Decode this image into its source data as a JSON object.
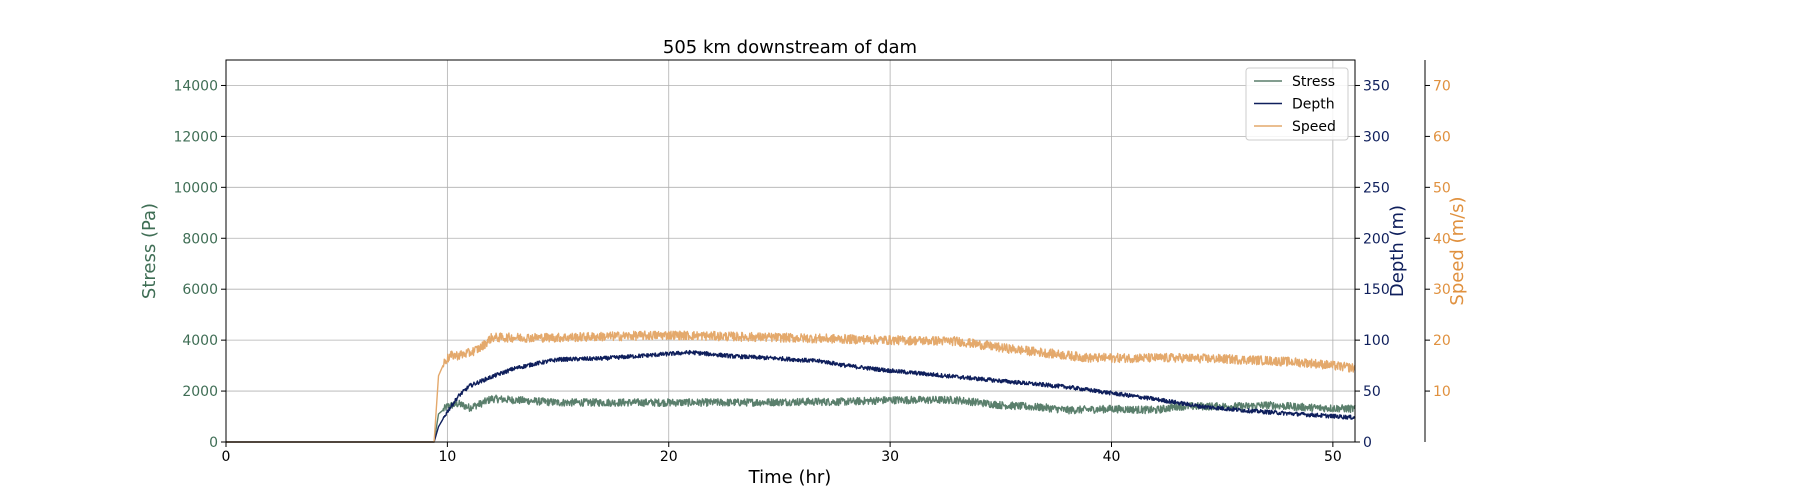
{
  "chart_data": {
    "type": "line",
    "title": "505 km downstream of dam",
    "xlabel": "Time (hr)",
    "xlim": [
      0,
      51
    ],
    "xticks": [
      0,
      10,
      20,
      30,
      40,
      50
    ],
    "grid": true,
    "legend_position": "top-right",
    "axes": [
      {
        "id": "stress",
        "label": "Stress (Pa)",
        "color": "#3f6e55",
        "ylim": [
          0,
          15000
        ],
        "ticks": [
          0,
          2000,
          4000,
          6000,
          8000,
          10000,
          12000,
          14000
        ]
      },
      {
        "id": "depth",
        "label": "Depth (m)",
        "color": "#0f1f5c",
        "ylim": [
          0,
          375
        ],
        "ticks": [
          0,
          50,
          100,
          150,
          200,
          250,
          300,
          350
        ]
      },
      {
        "id": "speed",
        "label": "Speed (m/s)",
        "color": "#e0913f",
        "ylim": [
          0,
          75
        ],
        "ticks": [
          10,
          20,
          30,
          40,
          50,
          60,
          70
        ]
      }
    ],
    "series": [
      {
        "name": "Stress",
        "axis": "stress",
        "color": "#5a7f6c",
        "noise": 150,
        "x": [
          0,
          9.4,
          9.6,
          10,
          10.5,
          11,
          11.5,
          12,
          13,
          15,
          17,
          20,
          23,
          26,
          28,
          30,
          33,
          35,
          37,
          38,
          40,
          42,
          43,
          46,
          47,
          49,
          51
        ],
        "y": [
          0,
          0,
          1100,
          1400,
          1500,
          1350,
          1500,
          1700,
          1650,
          1550,
          1550,
          1550,
          1550,
          1580,
          1580,
          1650,
          1650,
          1450,
          1350,
          1250,
          1300,
          1250,
          1400,
          1400,
          1450,
          1350,
          1300
        ]
      },
      {
        "name": "Depth",
        "axis": "depth",
        "color": "#0f1f5c",
        "noise": 2,
        "x": [
          0,
          9.4,
          9.6,
          10,
          10.5,
          11,
          12,
          13,
          14,
          15,
          17,
          19,
          21,
          23,
          25,
          27,
          28,
          30,
          33,
          36,
          38,
          40,
          42,
          44,
          46,
          48,
          51
        ],
        "y": [
          0,
          0,
          15,
          30,
          45,
          55,
          64,
          72,
          77,
          81,
          82,
          85,
          88,
          84,
          82,
          79,
          75,
          70,
          64,
          58,
          54,
          48,
          42,
          35,
          31,
          28,
          24
        ]
      },
      {
        "name": "Speed",
        "axis": "speed",
        "color": "#e4a96c",
        "noise": 0.9,
        "x": [
          0,
          9.4,
          9.6,
          9.9,
          10.2,
          10.5,
          11,
          11.5,
          12,
          13,
          15,
          20,
          25,
          30,
          33,
          35,
          37,
          39,
          41,
          43,
          45,
          47,
          49,
          51
        ],
        "y": [
          0,
          0,
          13,
          16,
          17,
          17,
          17.5,
          18.5,
          20.5,
          20.5,
          20.5,
          21,
          20.5,
          20,
          19.8,
          18.5,
          17.5,
          16.5,
          16.5,
          16.5,
          16.3,
          16,
          15.5,
          14.5
        ]
      }
    ]
  }
}
